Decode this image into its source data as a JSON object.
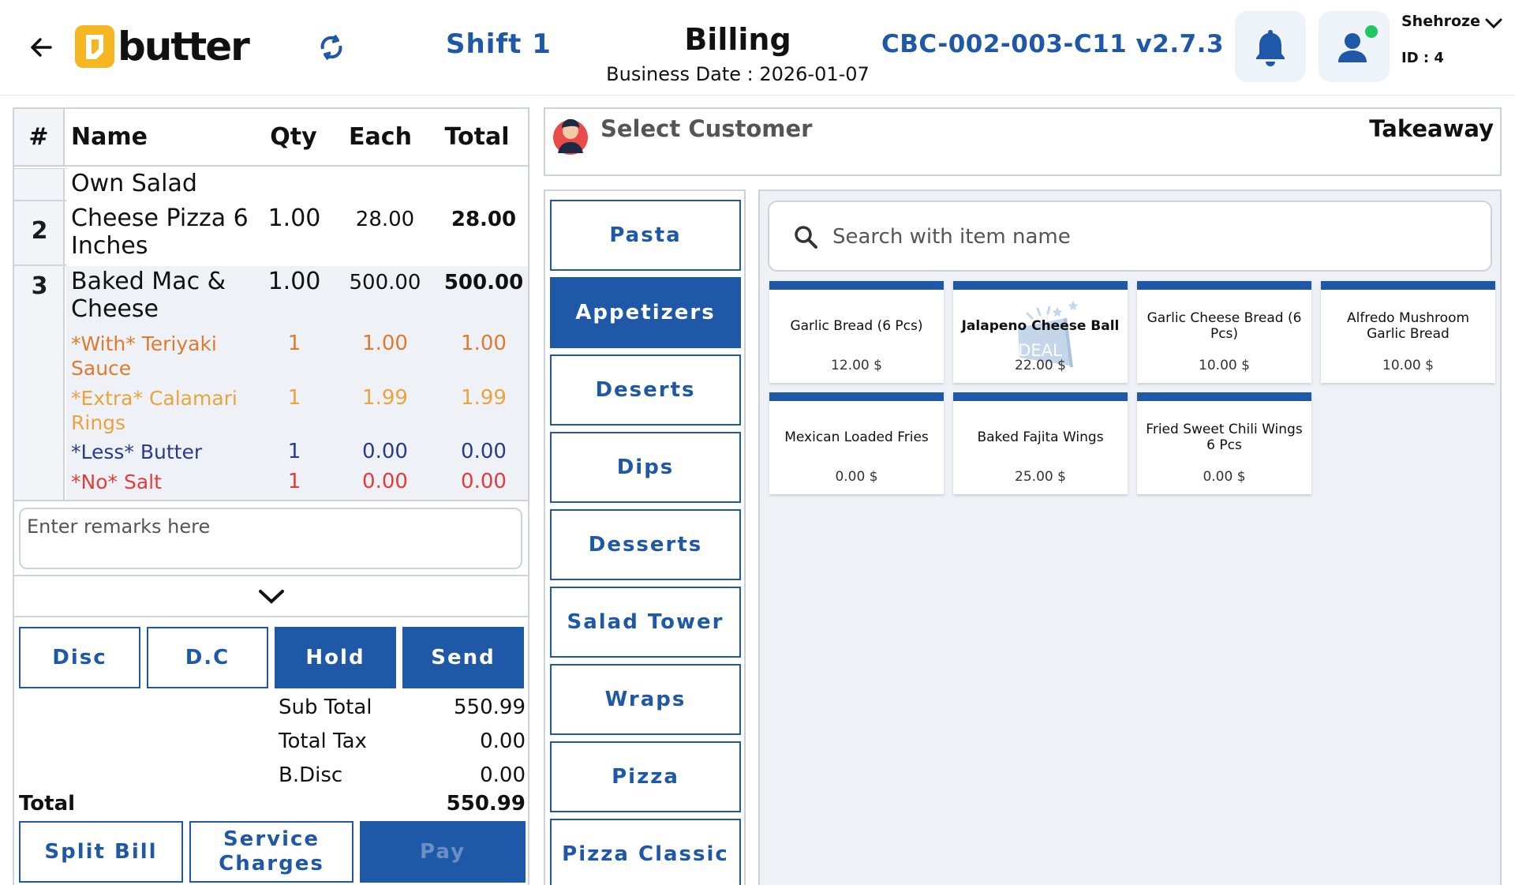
{
  "header": {
    "shift": "Shift 1",
    "title": "Billing",
    "business_date": "Business Date : 2026-01-07",
    "terminal": "CBC-002-003-C11  v2.7.3",
    "logo_text": "butter",
    "user": {
      "name": "Shehroze",
      "id": "ID : 4"
    }
  },
  "order": {
    "columns": {
      "num": "#",
      "name": "Name",
      "qty": "Qty",
      "each": "Each",
      "total": "Total"
    },
    "rows": [
      {
        "num": "",
        "name": "Own Salad",
        "qty": "",
        "each": "",
        "total": ""
      },
      {
        "num": "2",
        "name": "Cheese Pizza 6 Inches",
        "qty": "1.00",
        "each": "28.00",
        "total": "28.00"
      },
      {
        "num": "3",
        "name": "Baked Mac & Cheese",
        "qty": "1.00",
        "each": "500.00",
        "total": "500.00"
      }
    ],
    "modifiers": [
      {
        "name": "*With* Teriyaki Sauce",
        "qty": "1",
        "each": "1.00",
        "total": "1.00",
        "color": "#e07a2e"
      },
      {
        "name": "*Extra* Calamari Rings",
        "qty": "1",
        "each": "1.99",
        "total": "1.99",
        "color": "#eaa33d"
      },
      {
        "name": "*Less* Butter",
        "qty": "1",
        "each": "0.00",
        "total": "0.00",
        "color": "#2c3a8c"
      },
      {
        "name": "*No* Salt",
        "qty": "1",
        "each": "0.00",
        "total": "0.00",
        "color": "#e43c3c"
      }
    ],
    "remarks_placeholder": "Enter remarks here",
    "buttons": {
      "disc": "Disc",
      "dc": "D.C",
      "hold": "Hold",
      "send": "Send"
    },
    "summary": {
      "subtotal_label": "Sub Total",
      "subtotal": "550.99",
      "tax_label": "Total Tax",
      "tax": "0.00",
      "bdisc_label": "B.Disc",
      "bdisc": "0.00",
      "total_label": "Total",
      "total": "550.99"
    },
    "bottom": {
      "split": "Split Bill",
      "service": "Service Charges",
      "pay": "Pay"
    }
  },
  "customer": {
    "label": "Select Customer",
    "order_type": "Takeaway"
  },
  "categories": [
    "Pasta",
    "Appetizers",
    "Deserts",
    "Dips",
    "Desserts",
    "Salad Tower",
    "Wraps",
    "Pizza",
    "Pizza Classic"
  ],
  "active_category": "Appetizers",
  "search": {
    "placeholder": "Search with item name"
  },
  "items": [
    {
      "name": "Garlic Bread (6 Pcs)",
      "price": "12.00 $"
    },
    {
      "name": "Jalapeno Cheese Ball",
      "price": "22.00 $",
      "badge": "DEAL"
    },
    {
      "name": "Garlic Cheese Bread (6 Pcs)",
      "price": "10.00 $"
    },
    {
      "name": "Alfredo Mushroom Garlic Bread",
      "price": "10.00 $"
    },
    {
      "name": "Mexican Loaded Fries",
      "price": "0.00 $"
    },
    {
      "name": "Baked Fajita Wings",
      "price": "25.00 $"
    },
    {
      "name": "Fried Sweet Chili Wings 6 Pcs",
      "price": "0.00 $"
    }
  ],
  "colors": {
    "primary": "#1f58a6",
    "online": "#22c55e",
    "logo": "#f5b622"
  }
}
